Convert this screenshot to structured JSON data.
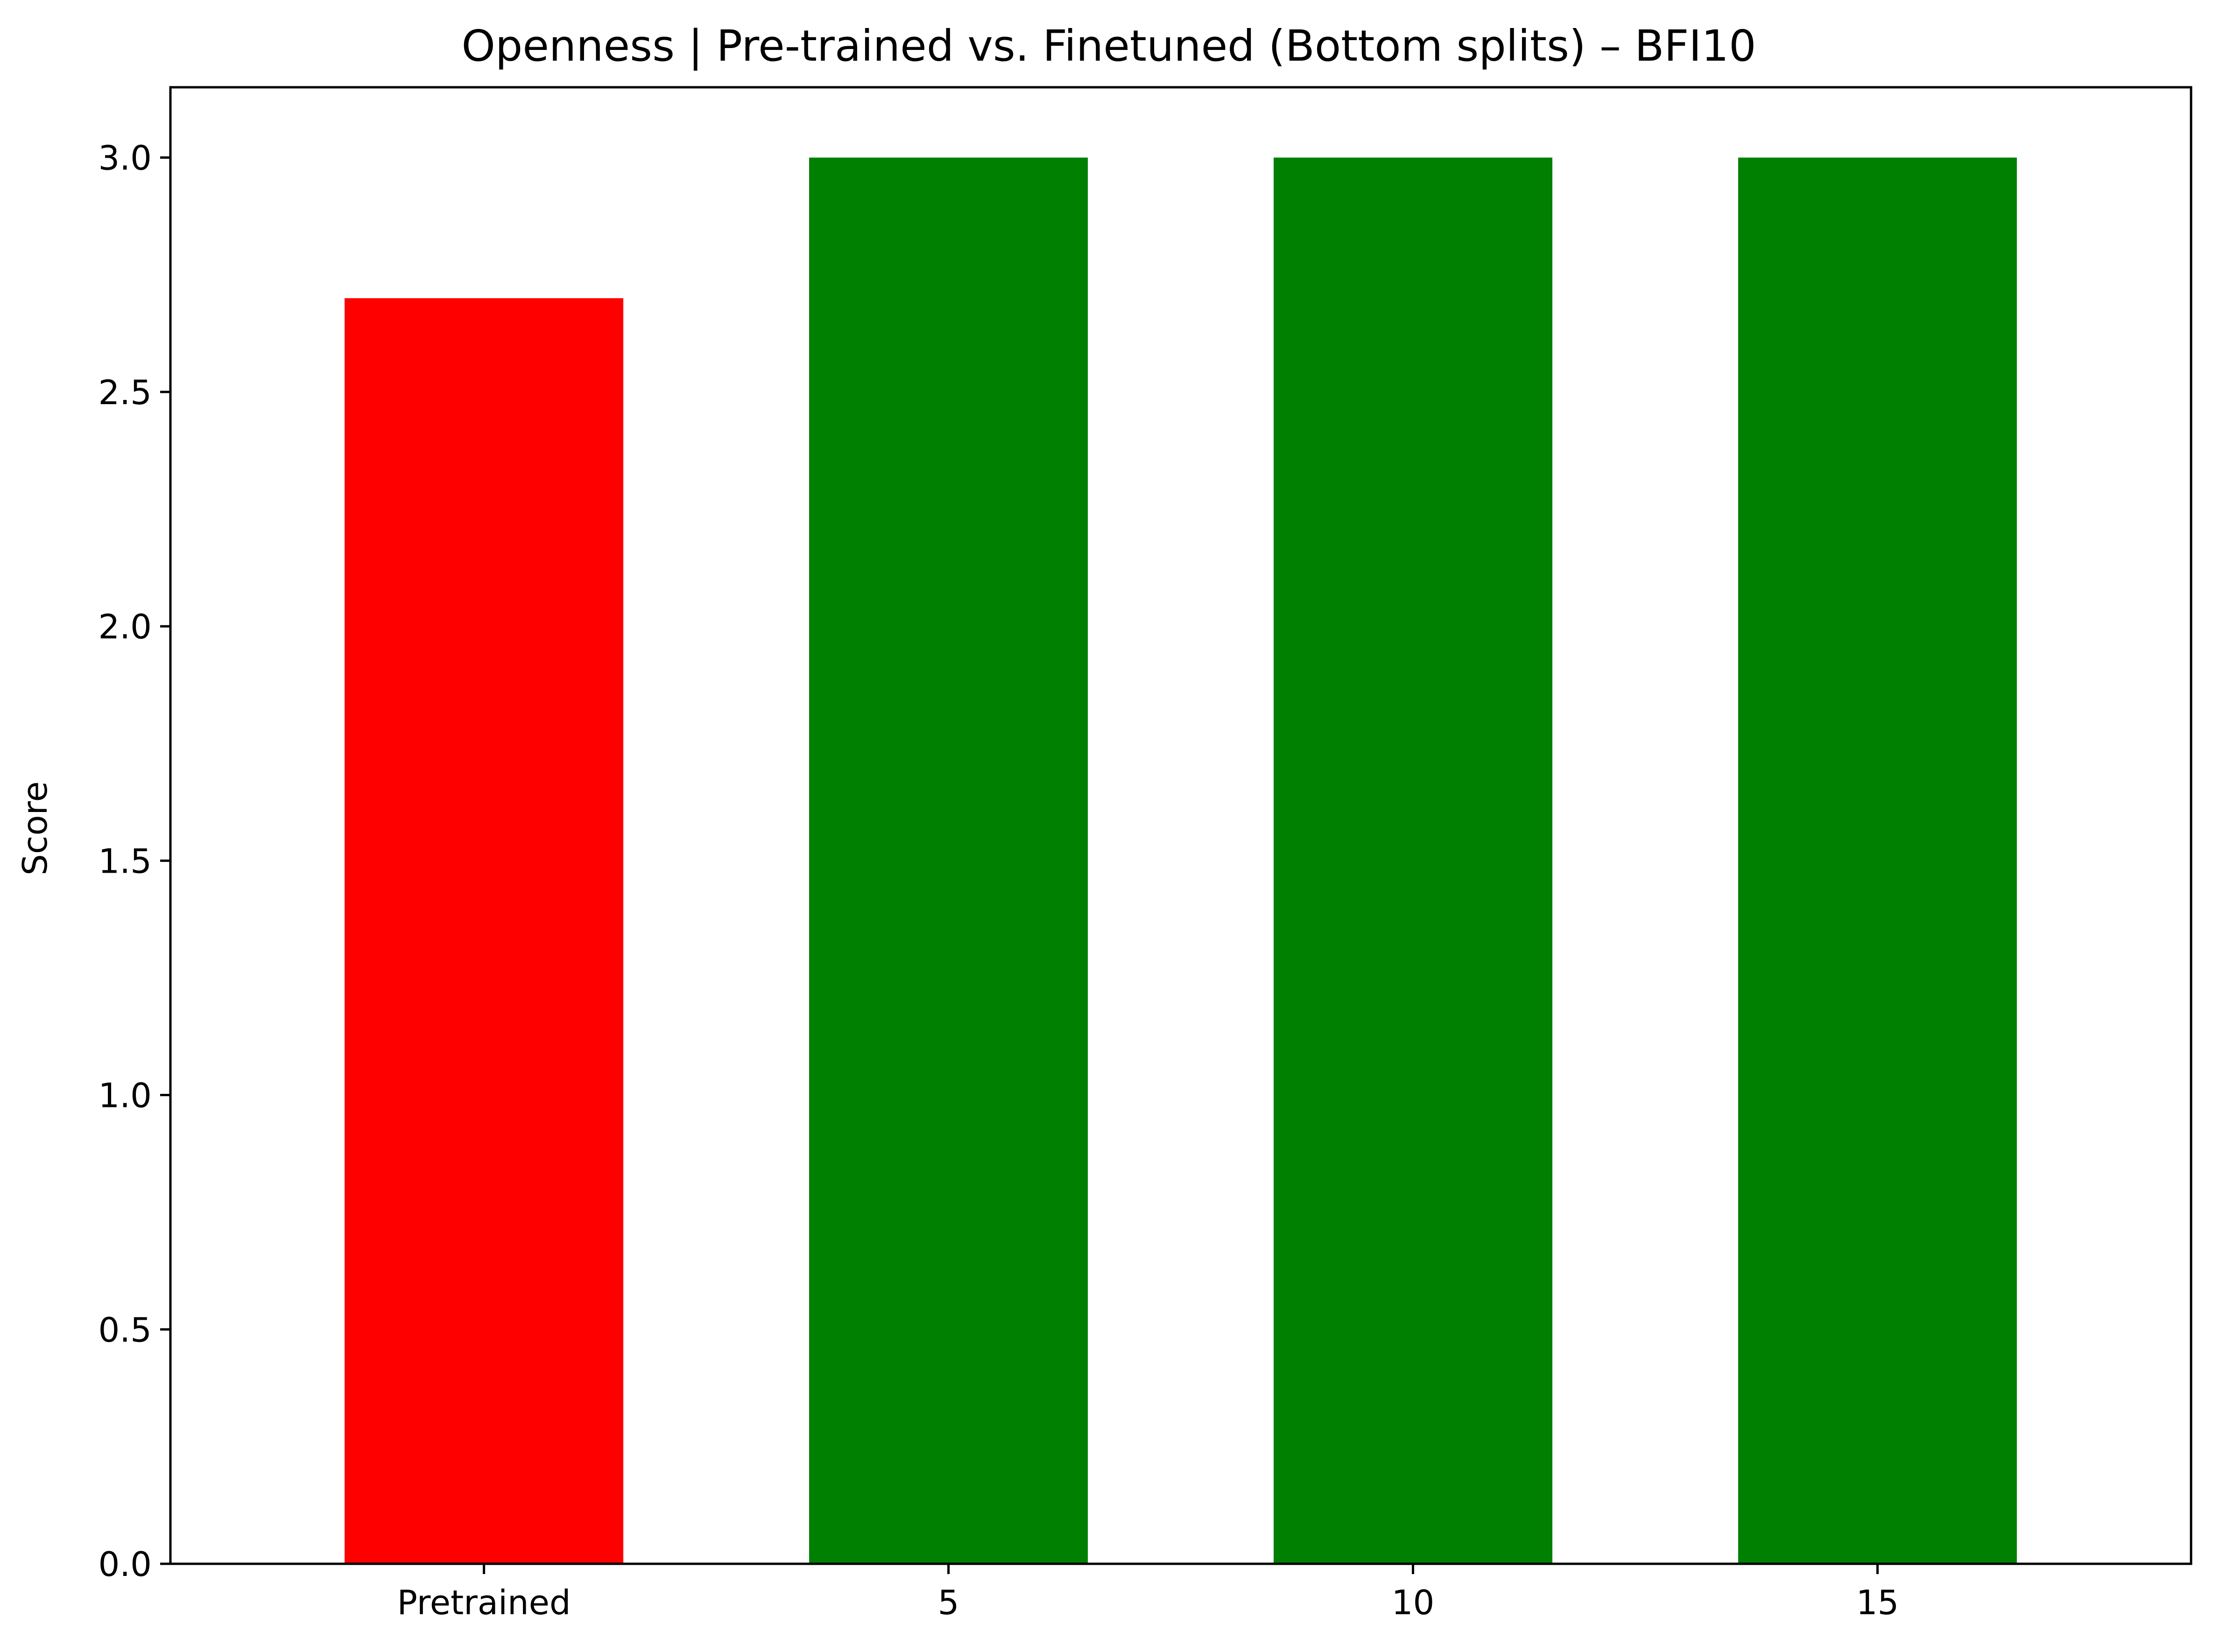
{
  "chart_data": {
    "type": "bar",
    "title": "Openness | Pre-trained vs. Finetuned (Bottom splits) – BFI10",
    "xlabel": "",
    "ylabel": "Score",
    "categories": [
      "Pretrained",
      "5",
      "10",
      "15"
    ],
    "values": [
      2.7,
      3.0,
      3.0,
      3.0
    ],
    "bar_colors": [
      "#ff0000",
      "#008000",
      "#008000",
      "#008000"
    ],
    "ylim": [
      0,
      3.15
    ],
    "yticks": [
      0.0,
      0.5,
      1.0,
      1.5,
      2.0,
      2.5,
      3.0
    ],
    "ytick_labels": [
      "0.0",
      "0.5",
      "1.0",
      "1.5",
      "2.0",
      "2.5",
      "3.0"
    ],
    "grid": false,
    "legend": "none"
  }
}
